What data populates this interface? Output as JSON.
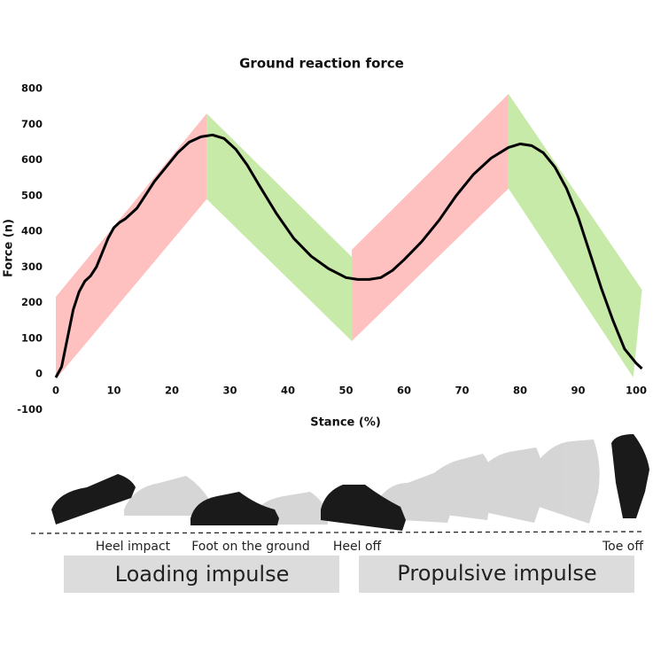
{
  "chart_data": {
    "type": "line",
    "title": "Ground reaction force",
    "x_label": "Stance (%)",
    "y_label": "Force (n)",
    "xlim": [
      -1,
      102
    ],
    "ylim": [
      -120,
      820
    ],
    "xticks": [
      0,
      10,
      20,
      30,
      40,
      50,
      60,
      70,
      80,
      90,
      100
    ],
    "yticks": [
      -100,
      0,
      100,
      200,
      300,
      400,
      500,
      600,
      700,
      800
    ],
    "grid": false,
    "series": [
      {
        "color": "#000000",
        "x": [
          0,
          1,
          2,
          3,
          4,
          5,
          6,
          7,
          8,
          9,
          10,
          11,
          12,
          13,
          14,
          15,
          17,
          19,
          21,
          23,
          25,
          27,
          29,
          31,
          33,
          35,
          38,
          41,
          44,
          47,
          50,
          52,
          54,
          56,
          58,
          60,
          63,
          66,
          69,
          72,
          75,
          78,
          80,
          82,
          84,
          86,
          88,
          90,
          92,
          94,
          96,
          98,
          100,
          101
        ],
        "values": [
          -10,
          20,
          100,
          180,
          230,
          260,
          275,
          300,
          340,
          380,
          410,
          425,
          435,
          450,
          465,
          490,
          540,
          580,
          620,
          650,
          665,
          670,
          660,
          630,
          585,
          530,
          450,
          380,
          330,
          295,
          270,
          265,
          265,
          270,
          290,
          320,
          370,
          430,
          500,
          560,
          605,
          635,
          645,
          640,
          620,
          580,
          520,
          440,
          340,
          240,
          150,
          70,
          30,
          15
        ]
      }
    ],
    "bands": [
      {
        "color": "#ffc0c0",
        "points": [
          [
            0,
            -15
          ],
          [
            0,
            216
          ],
          [
            26,
            730
          ],
          [
            26,
            490
          ]
        ]
      },
      {
        "color": "#c8eaa8",
        "points": [
          [
            26,
            490
          ],
          [
            26,
            730
          ],
          [
            51,
            328
          ],
          [
            51,
            92
          ]
        ]
      },
      {
        "color": "#ffc0c0",
        "points": [
          [
            51,
            92
          ],
          [
            51,
            348
          ],
          [
            78,
            785
          ],
          [
            78,
            520
          ]
        ]
      },
      {
        "color": "#c8eaa8",
        "points": [
          [
            78,
            520
          ],
          [
            78,
            785
          ],
          [
            101,
            236
          ],
          [
            99.5,
            -10
          ]
        ]
      }
    ]
  },
  "illustration": {
    "events": [
      "Heel impact",
      "Foot on the ground",
      "Heel off",
      "Toe off"
    ],
    "phases": [
      "Loading impulse",
      "Propulsive impulse"
    ]
  }
}
